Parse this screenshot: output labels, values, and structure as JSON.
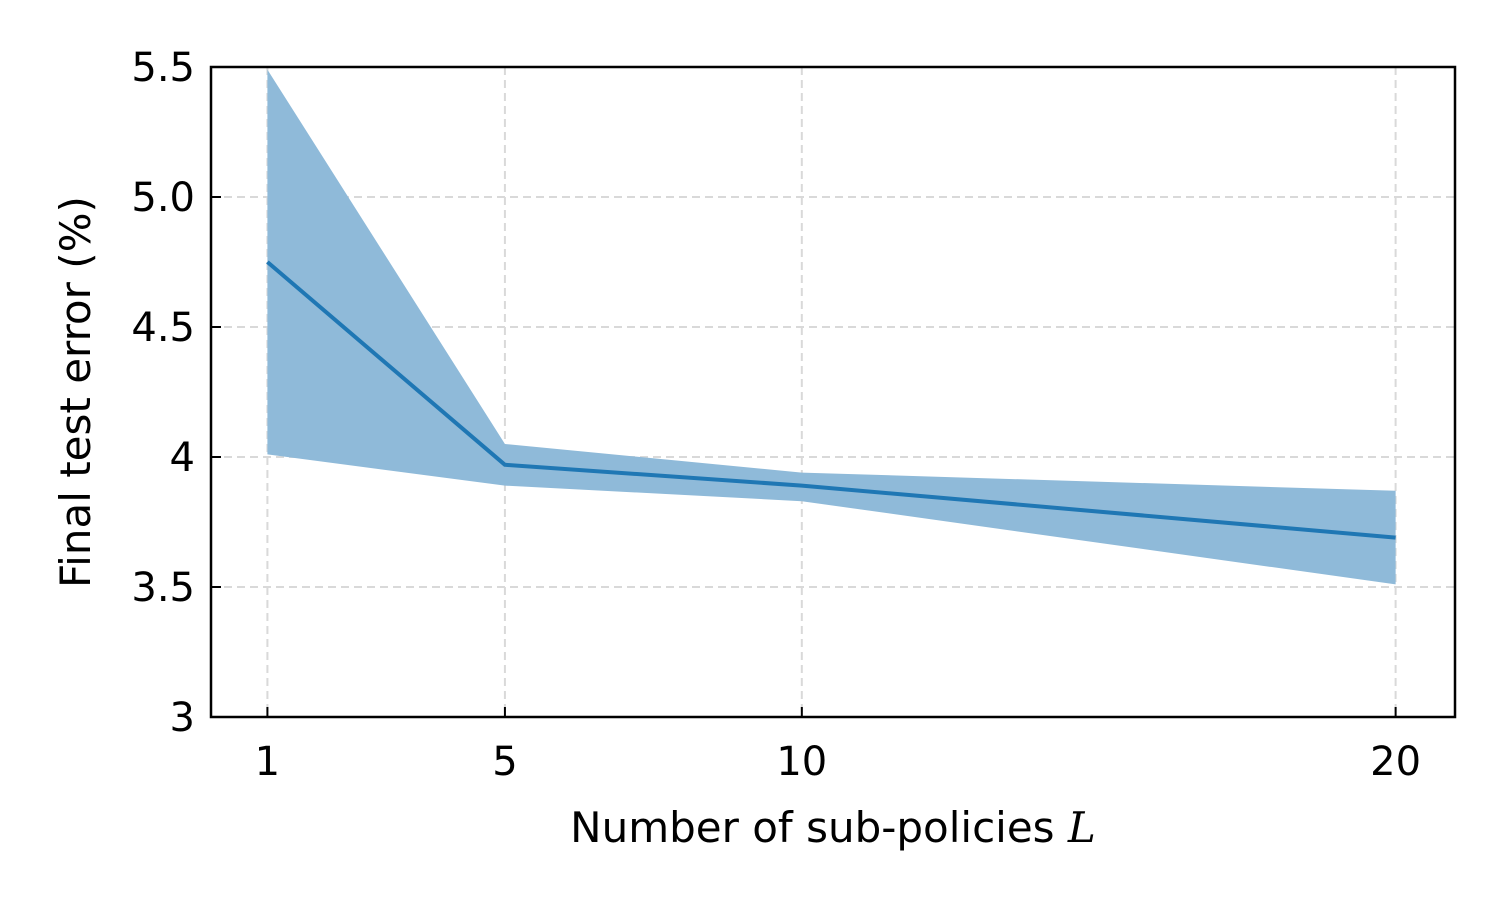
{
  "chart_data": {
    "type": "line",
    "xlabel_text": "Number of sub-policies ",
    "xlabel_var": "L",
    "ylabel": "Final test error (%)",
    "x": [
      1,
      5,
      10,
      20
    ],
    "series": [
      {
        "values": [
          4.75,
          3.97,
          3.89,
          3.69
        ],
        "lower": [
          4.01,
          3.89,
          3.83,
          3.51
        ],
        "upper": [
          5.49,
          4.05,
          3.94,
          3.87
        ],
        "color": "#1f77b4",
        "band_color": "#8fbad9"
      }
    ],
    "xticks": [
      1,
      5,
      10,
      20
    ],
    "xtick_labels": [
      "1",
      "5",
      "10",
      "20"
    ],
    "yticks": [
      3,
      3.5,
      4,
      4.5,
      5,
      5.5
    ],
    "ytick_labels": [
      "3",
      "3.5",
      "4",
      "4.5",
      "5.0",
      "5.5"
    ],
    "xlim": [
      0.05,
      21.0
    ],
    "ylim": [
      3.0,
      5.5
    ],
    "grid": true
  }
}
